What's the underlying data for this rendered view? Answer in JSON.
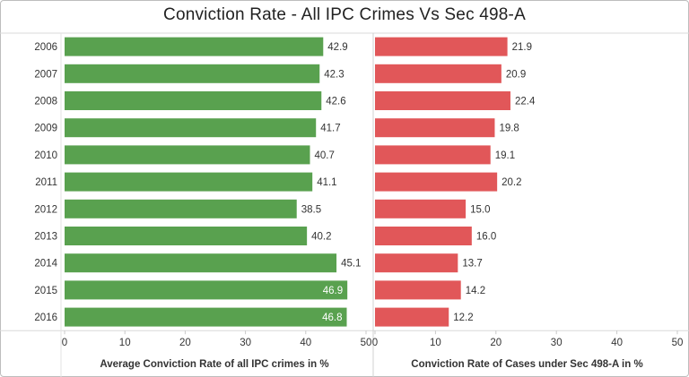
{
  "title": "Conviction Rate - All IPC Crimes Vs Sec 498-A",
  "chart_data": {
    "type": "bar",
    "orientation": "horizontal",
    "categories": [
      "2006",
      "2007",
      "2008",
      "2009",
      "2010",
      "2011",
      "2012",
      "2013",
      "2014",
      "2015",
      "2016"
    ],
    "panels": [
      {
        "xlabel": "Average Conviction Rate of all IPC  crimes in %",
        "xlim": [
          0,
          50
        ],
        "ticks": [
          0,
          10,
          20,
          30,
          40,
          50
        ],
        "color": "#59a14f",
        "values": [
          42.9,
          42.3,
          42.6,
          41.7,
          40.7,
          41.1,
          38.5,
          40.2,
          45.1,
          46.9,
          46.8
        ],
        "labels": [
          "42.9",
          "42.3",
          "42.6",
          "41.7",
          "40.7",
          "41.1",
          "38.5",
          "40.2",
          "45.1",
          "46.9",
          "46.8"
        ]
      },
      {
        "xlabel": "Conviction Rate of Cases under Sec 498-A in %",
        "xlim": [
          0,
          50
        ],
        "ticks": [
          0,
          10,
          20,
          30,
          40,
          50
        ],
        "color": "#e15759",
        "values": [
          21.9,
          20.9,
          22.4,
          19.8,
          19.1,
          20.2,
          15.0,
          16.0,
          13.7,
          14.2,
          12.2
        ],
        "labels": [
          "21.9",
          "20.9",
          "22.4",
          "19.8",
          "19.1",
          "20.2",
          "15.0",
          "16.0",
          "13.7",
          "14.2",
          "12.2"
        ]
      }
    ]
  }
}
